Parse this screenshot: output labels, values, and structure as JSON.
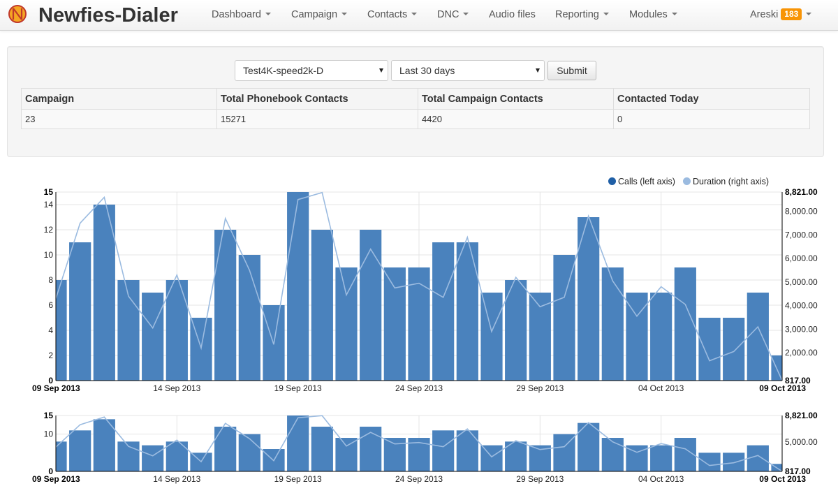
{
  "app": {
    "title": "Newfies-Dialer"
  },
  "nav": {
    "items": [
      {
        "label": "Dashboard",
        "dropdown": true
      },
      {
        "label": "Campaign",
        "dropdown": true
      },
      {
        "label": "Contacts",
        "dropdown": true
      },
      {
        "label": "DNC",
        "dropdown": true
      },
      {
        "label": "Audio files",
        "dropdown": false
      },
      {
        "label": "Reporting",
        "dropdown": true
      },
      {
        "label": "Modules",
        "dropdown": true
      }
    ],
    "user": {
      "name": "Areski",
      "badge": "183"
    }
  },
  "filters": {
    "campaign_select": "Test4K-speed2k-D",
    "period_select": "Last 30 days",
    "submit_label": "Submit"
  },
  "stats_table": {
    "headers": [
      "Campaign",
      "Total Phonebook Contacts",
      "Total Campaign Contacts",
      "Contacted Today"
    ],
    "rows": [
      [
        "23",
        "15271",
        "4420",
        "0"
      ]
    ]
  },
  "legend": {
    "calls": "Calls (left axis)",
    "duration": "Duration (right axis)"
  },
  "colors": {
    "bar": "#4a82bd",
    "line": "#9bbbe0",
    "accent": "#f89406"
  },
  "chart_data": [
    {
      "type": "bar",
      "role": "main",
      "x": [
        "2013-09-09",
        "2013-09-10",
        "2013-09-11",
        "2013-09-12",
        "2013-09-13",
        "2013-09-14",
        "2013-09-15",
        "2013-09-16",
        "2013-09-17",
        "2013-09-18",
        "2013-09-19",
        "2013-09-20",
        "2013-09-21",
        "2013-09-22",
        "2013-09-23",
        "2013-09-24",
        "2013-09-25",
        "2013-09-26",
        "2013-09-27",
        "2013-09-28",
        "2013-09-29",
        "2013-09-30",
        "2013-10-01",
        "2013-10-02",
        "2013-10-03",
        "2013-10-04",
        "2013-10-05",
        "2013-10-06",
        "2013-10-07",
        "2013-10-08",
        "2013-10-09"
      ],
      "series": [
        {
          "name": "Calls (left axis)",
          "axis": "left",
          "kind": "bar",
          "values": [
            8,
            11,
            14,
            8,
            7,
            8,
            5,
            12,
            10,
            6,
            15,
            12,
            9,
            12,
            9,
            9,
            11,
            11,
            7,
            8,
            7,
            10,
            13,
            9,
            7,
            7,
            9,
            5,
            5,
            7,
            2
          ]
        },
        {
          "name": "Duration (right axis)",
          "axis": "right",
          "kind": "line",
          "values": [
            4300,
            7500,
            8600,
            4400,
            3050,
            5300,
            2200,
            7700,
            5500,
            2350,
            8500,
            8800,
            4450,
            6400,
            4750,
            4950,
            4350,
            6900,
            2900,
            5200,
            3950,
            4350,
            7800,
            5050,
            3550,
            4800,
            4050,
            1660,
            2050,
            3100,
            817
          ]
        }
      ],
      "x_ticks": [
        "09 Sep 2013",
        "14 Sep 2013",
        "19 Sep 2013",
        "24 Sep 2013",
        "29 Sep 2013",
        "04 Oct 2013",
        "09 Oct 2013"
      ],
      "left_ticks": [
        "0",
        "2",
        "4",
        "6",
        "8",
        "10",
        "12",
        "14",
        "15"
      ],
      "right_ticks": [
        "817.00",
        "2,000.00",
        "3,000.00",
        "4,000.00",
        "5,000.00",
        "6,000.00",
        "7,000.00",
        "8,000.00",
        "8,821.00"
      ],
      "ylim": [
        0,
        15
      ],
      "y2lim": [
        817,
        8821
      ],
      "legend_position": "top-right",
      "grid": true
    },
    {
      "type": "bar",
      "role": "overview",
      "x_ticks": [
        "09 Sep 2013",
        "14 Sep 2013",
        "19 Sep 2013",
        "24 Sep 2013",
        "29 Sep 2013",
        "04 Oct 2013",
        "09 Oct 2013"
      ],
      "left_ticks": [
        "0",
        "10",
        "15"
      ],
      "right_ticks": [
        "817.00",
        "5,000.00",
        "8,821.00"
      ],
      "ylim": [
        0,
        15
      ],
      "y2lim": [
        817,
        8821
      ],
      "grid": true
    }
  ]
}
